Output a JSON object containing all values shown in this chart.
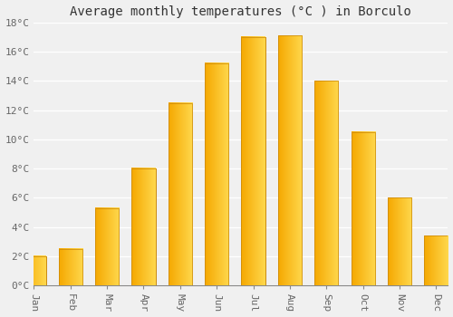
{
  "title": "Average monthly temperatures (°C ) in Borculo",
  "months": [
    "Jan",
    "Feb",
    "Mar",
    "Apr",
    "May",
    "Jun",
    "Jul",
    "Aug",
    "Sep",
    "Oct",
    "Nov",
    "Dec"
  ],
  "values": [
    2.0,
    2.5,
    5.3,
    8.0,
    12.5,
    15.2,
    17.0,
    17.1,
    14.0,
    10.5,
    6.0,
    3.4
  ],
  "bar_color_left": "#F5A800",
  "bar_color_right": "#FFD84D",
  "bar_edge_color": "#C8860A",
  "ylim": [
    0,
    18
  ],
  "yticks": [
    0,
    2,
    4,
    6,
    8,
    10,
    12,
    14,
    16,
    18
  ],
  "ytick_labels": [
    "0°C",
    "2°C",
    "4°C",
    "6°C",
    "8°C",
    "10°C",
    "12°C",
    "14°C",
    "16°C",
    "18°C"
  ],
  "background_color": "#f0f0f0",
  "grid_color": "#ffffff",
  "title_fontsize": 10,
  "tick_fontsize": 8,
  "bar_width": 0.65
}
